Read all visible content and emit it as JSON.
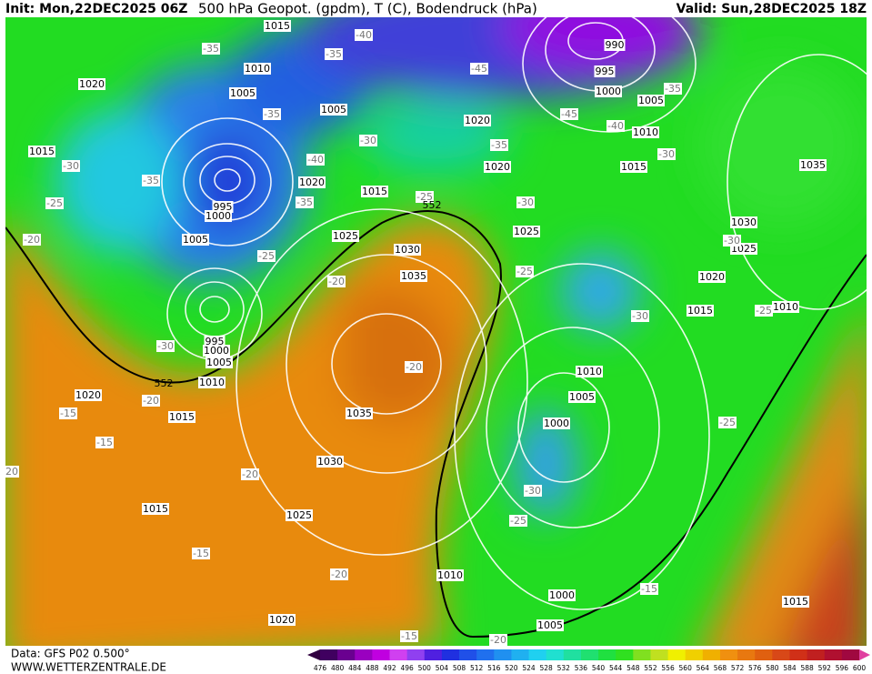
{
  "header": {
    "init": "Init: Mon,22DEC2025 06Z",
    "title": "500 hPa Geopot. (gpdm), T (C), Bodendruck (hPa)",
    "valid": "Valid: Sun,28DEC2025 18Z"
  },
  "footer": {
    "data": "Data: GFS P02 0.500°",
    "site": "WWW.WETTERZENTRALE.DE"
  },
  "pressure_labels": [
    "1015",
    "1010",
    "1005",
    "1005",
    "1020",
    "1015",
    "1020",
    "1010",
    "1005",
    "1000",
    "995",
    "990",
    "1015",
    "1020",
    "1020",
    "1015",
    "995",
    "1000",
    "1005",
    "1025",
    "1030",
    "1035",
    "1025",
    "1035",
    "1030",
    "1025",
    "1020",
    "1015",
    "1010",
    "995",
    "1000",
    "1005",
    "1010",
    "1020",
    "1015",
    "1035",
    "1030",
    "1025",
    "1015",
    "1020",
    "1010",
    "1005",
    "1000",
    "1010",
    "1000",
    "1005",
    "1015"
  ],
  "temperature_labels": [
    "-35",
    "-35",
    "-40",
    "-45",
    "-45",
    "-40",
    "-35",
    "-35",
    "-30",
    "-40",
    "-35",
    "-30",
    "-35",
    "-25",
    "-35",
    "-25",
    "-30",
    "-30",
    "-20",
    "-25",
    "-25",
    "-30",
    "-20",
    "-30",
    "-25",
    "-30",
    "-20",
    "-20",
    "-15",
    "-15",
    "-20",
    "-25",
    "-30",
    "-25",
    "-15",
    "-20",
    "-15",
    "-15",
    "-20",
    "20"
  ],
  "contour_labels": [
    "552",
    "552"
  ],
  "colorbar": {
    "labels": [
      "476",
      "480",
      "484",
      "488",
      "492",
      "496",
      "500",
      "504",
      "508",
      "512",
      "516",
      "520",
      "524",
      "528",
      "532",
      "536",
      "540",
      "544",
      "548",
      "552",
      "556",
      "560",
      "564",
      "568",
      "572",
      "576",
      "580",
      "584",
      "588",
      "592",
      "596",
      "600"
    ]
  }
}
